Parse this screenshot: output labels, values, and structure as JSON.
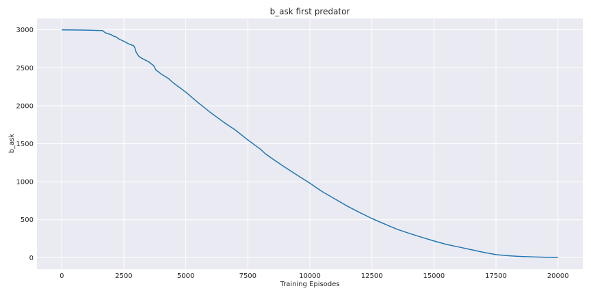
{
  "chart_data": {
    "type": "line",
    "title": "b_ask first predator",
    "xlabel": "Training Episodes",
    "ylabel": "b_ask",
    "xlim": [
      -1000,
      21000
    ],
    "ylim": [
      -150,
      3150
    ],
    "grid": true,
    "colors": {
      "line": "#1f77b4",
      "plot_background": "#eaeaf2",
      "grid": "#ffffff"
    },
    "x_ticks": [
      0,
      2500,
      5000,
      7500,
      10000,
      12500,
      15000,
      17500,
      20000
    ],
    "x_tick_labels": [
      "0",
      "2500",
      "5000",
      "7500",
      "10000",
      "12500",
      "15000",
      "17500",
      "20000"
    ],
    "y_ticks": [
      0,
      500,
      1000,
      1500,
      2000,
      2500,
      3000
    ],
    "y_tick_labels": [
      "0",
      "500",
      "1000",
      "1500",
      "2000",
      "2500",
      "3000"
    ],
    "series": [
      {
        "x": [
          0,
          500,
          1000,
          1500,
          1650,
          1700,
          1800,
          2000,
          2100,
          2200,
          2300,
          2500,
          2700,
          2900,
          2950,
          3000,
          3050,
          3100,
          3200,
          3500,
          3700,
          3800,
          4000,
          4300,
          4500,
          5000,
          5500,
          6000,
          6500,
          7000,
          7500,
          8000,
          8200,
          8500,
          9000,
          9500,
          10000,
          10500,
          11000,
          11500,
          12000,
          12500,
          13000,
          13500,
          14000,
          14500,
          15000,
          15500,
          16000,
          16500,
          17000,
          17500,
          18000,
          18500,
          19000,
          19500,
          20000
        ],
        "y": [
          3000,
          2998,
          2996,
          2992,
          2990,
          2975,
          2955,
          2935,
          2915,
          2905,
          2880,
          2850,
          2815,
          2790,
          2760,
          2705,
          2680,
          2655,
          2630,
          2580,
          2530,
          2470,
          2420,
          2360,
          2300,
          2180,
          2040,
          1910,
          1790,
          1680,
          1550,
          1430,
          1370,
          1300,
          1190,
          1085,
          980,
          870,
          775,
          680,
          595,
          515,
          445,
          375,
          320,
          270,
          220,
          175,
          140,
          105,
          70,
          40,
          25,
          15,
          10,
          5,
          3
        ]
      }
    ]
  }
}
